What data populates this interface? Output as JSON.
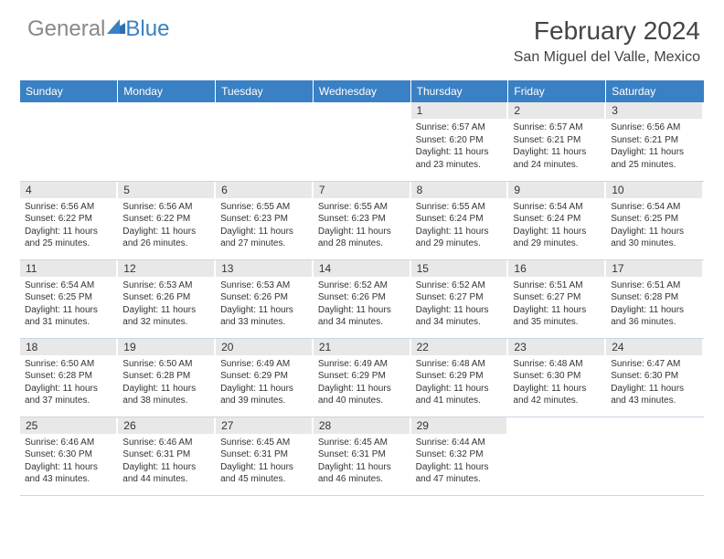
{
  "brand": {
    "part1": "General",
    "part2": "Blue"
  },
  "title": "February 2024",
  "location": "San Miguel del Valle, Mexico",
  "colors": {
    "header_bg": "#3a80c4",
    "header_text": "#ffffff",
    "daynum_bg": "#e8e8e8",
    "border": "#c9d6e4",
    "text": "#333333",
    "title_text": "#444444",
    "logo_gray": "#888888",
    "logo_blue": "#3a80c4"
  },
  "fonts": {
    "title_size": 28,
    "location_size": 16,
    "th_size": 12,
    "daynum_size": 12,
    "detail_size": 10
  },
  "weekdays": [
    "Sunday",
    "Monday",
    "Tuesday",
    "Wednesday",
    "Thursday",
    "Friday",
    "Saturday"
  ],
  "blank_leading": 4,
  "days": [
    {
      "n": 1,
      "sr": "6:57 AM",
      "ss": "6:20 PM",
      "dl": "11 hours and 23 minutes."
    },
    {
      "n": 2,
      "sr": "6:57 AM",
      "ss": "6:21 PM",
      "dl": "11 hours and 24 minutes."
    },
    {
      "n": 3,
      "sr": "6:56 AM",
      "ss": "6:21 PM",
      "dl": "11 hours and 25 minutes."
    },
    {
      "n": 4,
      "sr": "6:56 AM",
      "ss": "6:22 PM",
      "dl": "11 hours and 25 minutes."
    },
    {
      "n": 5,
      "sr": "6:56 AM",
      "ss": "6:22 PM",
      "dl": "11 hours and 26 minutes."
    },
    {
      "n": 6,
      "sr": "6:55 AM",
      "ss": "6:23 PM",
      "dl": "11 hours and 27 minutes."
    },
    {
      "n": 7,
      "sr": "6:55 AM",
      "ss": "6:23 PM",
      "dl": "11 hours and 28 minutes."
    },
    {
      "n": 8,
      "sr": "6:55 AM",
      "ss": "6:24 PM",
      "dl": "11 hours and 29 minutes."
    },
    {
      "n": 9,
      "sr": "6:54 AM",
      "ss": "6:24 PM",
      "dl": "11 hours and 29 minutes."
    },
    {
      "n": 10,
      "sr": "6:54 AM",
      "ss": "6:25 PM",
      "dl": "11 hours and 30 minutes."
    },
    {
      "n": 11,
      "sr": "6:54 AM",
      "ss": "6:25 PM",
      "dl": "11 hours and 31 minutes."
    },
    {
      "n": 12,
      "sr": "6:53 AM",
      "ss": "6:26 PM",
      "dl": "11 hours and 32 minutes."
    },
    {
      "n": 13,
      "sr": "6:53 AM",
      "ss": "6:26 PM",
      "dl": "11 hours and 33 minutes."
    },
    {
      "n": 14,
      "sr": "6:52 AM",
      "ss": "6:26 PM",
      "dl": "11 hours and 34 minutes."
    },
    {
      "n": 15,
      "sr": "6:52 AM",
      "ss": "6:27 PM",
      "dl": "11 hours and 34 minutes."
    },
    {
      "n": 16,
      "sr": "6:51 AM",
      "ss": "6:27 PM",
      "dl": "11 hours and 35 minutes."
    },
    {
      "n": 17,
      "sr": "6:51 AM",
      "ss": "6:28 PM",
      "dl": "11 hours and 36 minutes."
    },
    {
      "n": 18,
      "sr": "6:50 AM",
      "ss": "6:28 PM",
      "dl": "11 hours and 37 minutes."
    },
    {
      "n": 19,
      "sr": "6:50 AM",
      "ss": "6:28 PM",
      "dl": "11 hours and 38 minutes."
    },
    {
      "n": 20,
      "sr": "6:49 AM",
      "ss": "6:29 PM",
      "dl": "11 hours and 39 minutes."
    },
    {
      "n": 21,
      "sr": "6:49 AM",
      "ss": "6:29 PM",
      "dl": "11 hours and 40 minutes."
    },
    {
      "n": 22,
      "sr": "6:48 AM",
      "ss": "6:29 PM",
      "dl": "11 hours and 41 minutes."
    },
    {
      "n": 23,
      "sr": "6:48 AM",
      "ss": "6:30 PM",
      "dl": "11 hours and 42 minutes."
    },
    {
      "n": 24,
      "sr": "6:47 AM",
      "ss": "6:30 PM",
      "dl": "11 hours and 43 minutes."
    },
    {
      "n": 25,
      "sr": "6:46 AM",
      "ss": "6:30 PM",
      "dl": "11 hours and 43 minutes."
    },
    {
      "n": 26,
      "sr": "6:46 AM",
      "ss": "6:31 PM",
      "dl": "11 hours and 44 minutes."
    },
    {
      "n": 27,
      "sr": "6:45 AM",
      "ss": "6:31 PM",
      "dl": "11 hours and 45 minutes."
    },
    {
      "n": 28,
      "sr": "6:45 AM",
      "ss": "6:31 PM",
      "dl": "11 hours and 46 minutes."
    },
    {
      "n": 29,
      "sr": "6:44 AM",
      "ss": "6:32 PM",
      "dl": "11 hours and 47 minutes."
    }
  ],
  "labels": {
    "sunrise": "Sunrise:",
    "sunset": "Sunset:",
    "daylight": "Daylight:"
  }
}
